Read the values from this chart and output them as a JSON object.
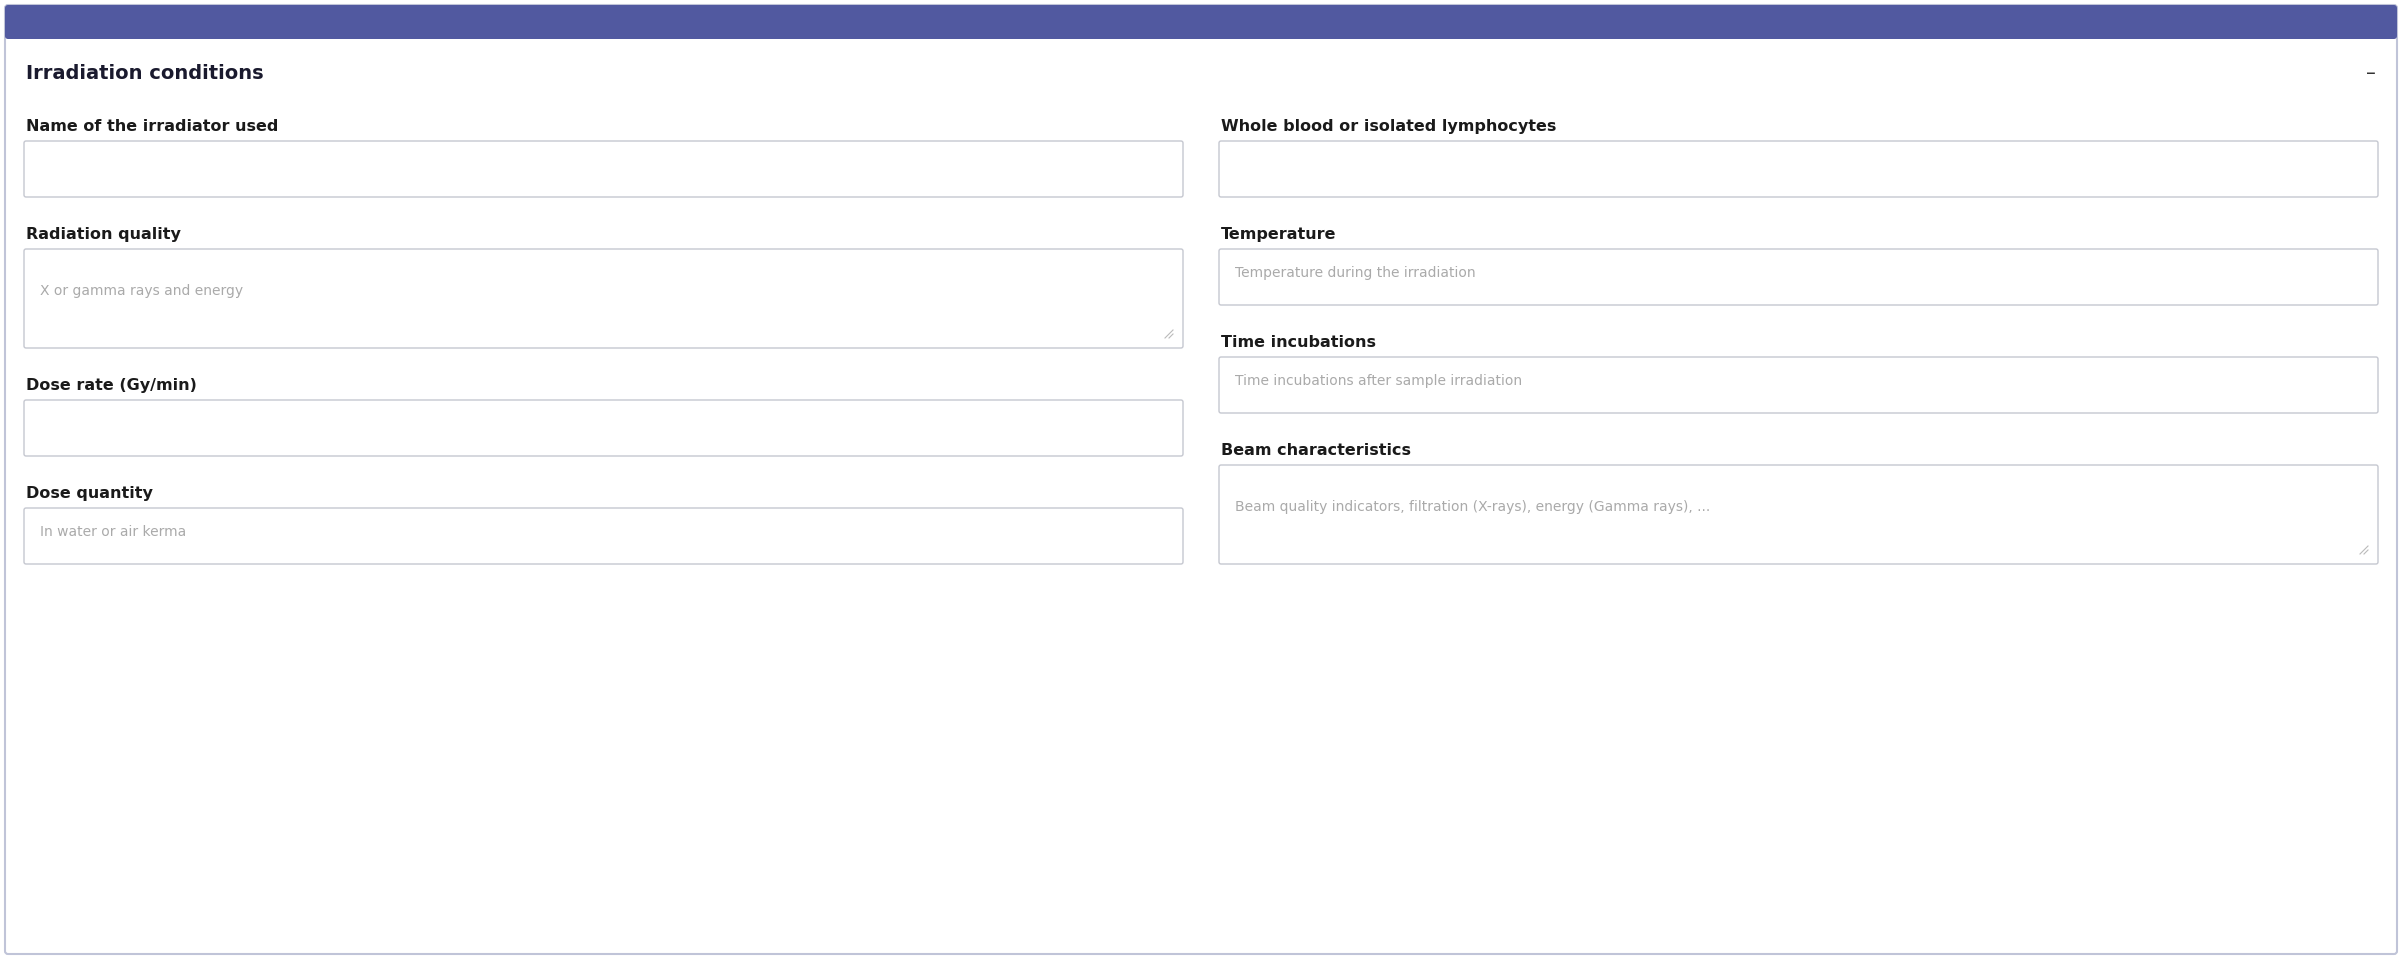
{
  "title": "Irradiation conditions",
  "title_color": "#1a1a2e",
  "header_bar_color": "#5159a0",
  "background_color": "#ffffff",
  "minimize_symbol": "–",
  "left_fields": [
    {
      "label": "Name of the irradiator used",
      "placeholder": "",
      "is_textarea": false
    },
    {
      "label": "Radiation quality",
      "placeholder": "X or gamma rays and energy",
      "is_textarea": true
    },
    {
      "label": "Dose rate (Gy/min)",
      "placeholder": "",
      "is_textarea": false
    },
    {
      "label": "Dose quantity",
      "placeholder": "In water or air kerma",
      "is_textarea": false
    }
  ],
  "right_fields": [
    {
      "label": "Whole blood or isolated lymphocytes",
      "placeholder": "",
      "is_textarea": false
    },
    {
      "label": "Temperature",
      "placeholder": "Temperature during the irradiation",
      "is_textarea": false
    },
    {
      "label": "Time incubations",
      "placeholder": "Time incubations after sample irradiation",
      "is_textarea": false
    },
    {
      "label": "Beam characteristics",
      "placeholder": "Beam quality indicators, filtration (X-rays), energy (Gamma rays), ...",
      "is_textarea": true
    }
  ],
  "label_fontsize": 11.5,
  "title_fontsize": 14,
  "placeholder_color": "#aaaaaa",
  "label_color": "#1a1a1a",
  "input_bg": "#ffffff",
  "input_border": "#c5c8d0",
  "outer_border_color": "#c0c4d8"
}
